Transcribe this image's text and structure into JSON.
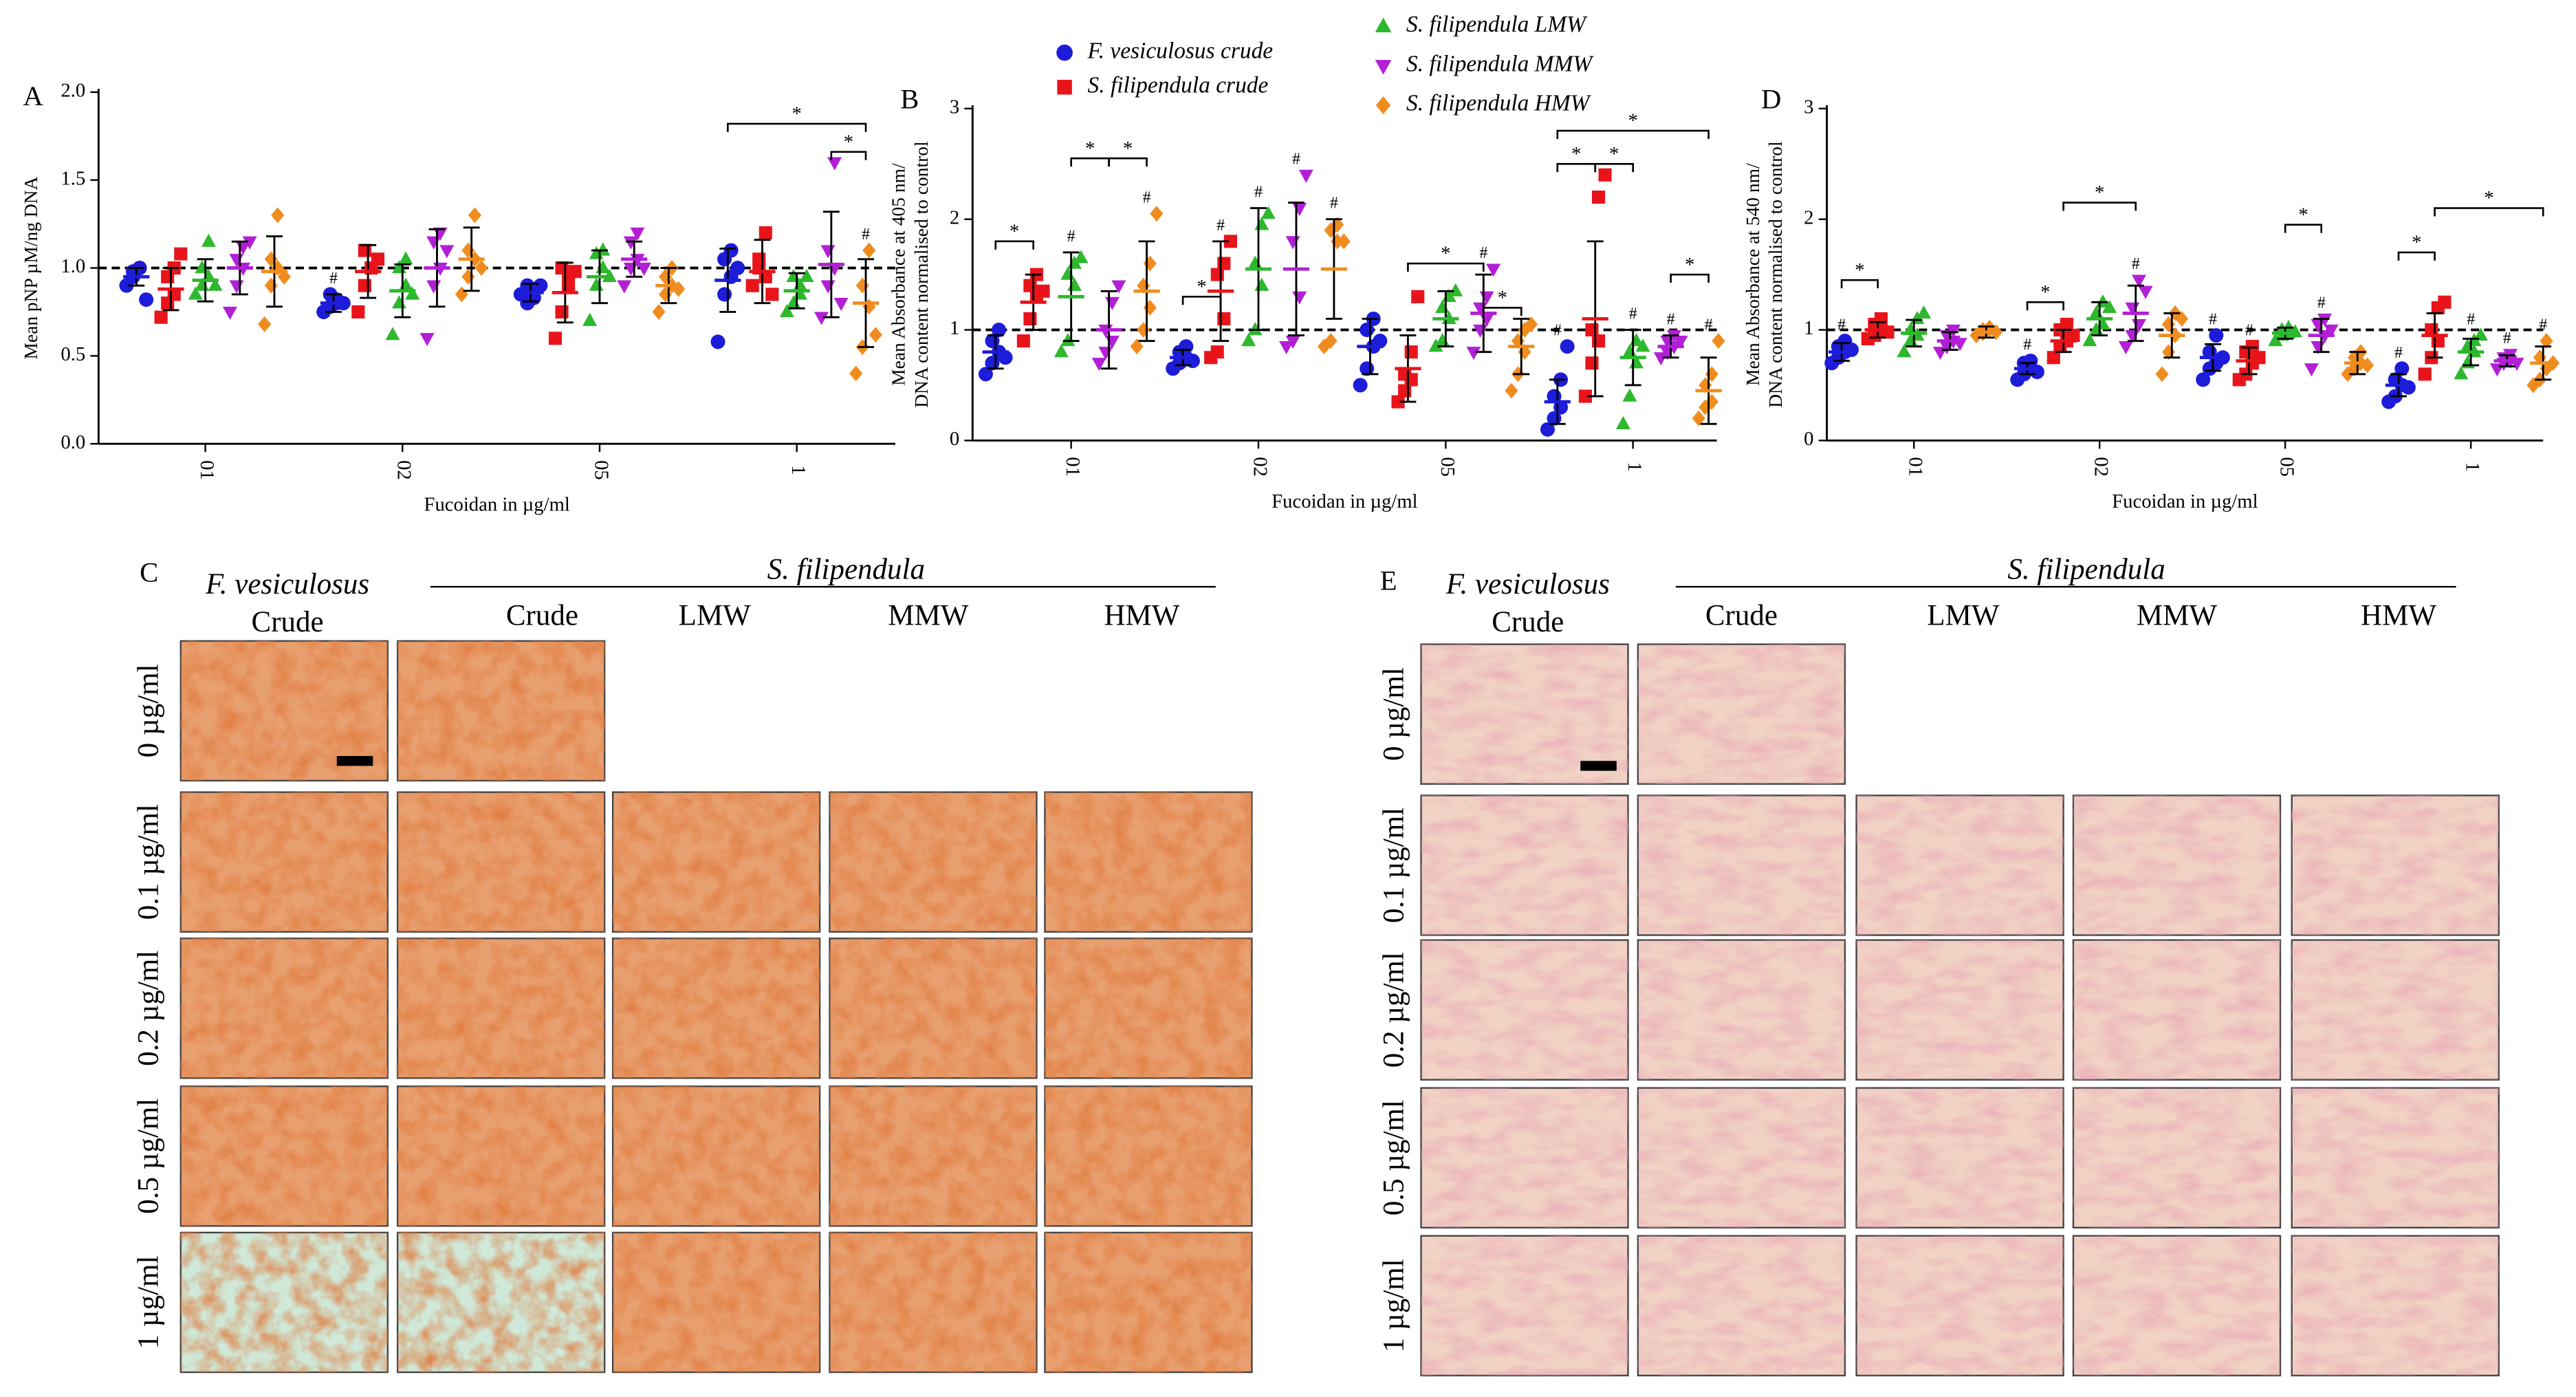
{
  "chart_data": [
    {
      "type": "dot",
      "panel": "A",
      "ylabel": [
        "Mean pNP µM/ng DNA"
      ],
      "xlabel": "Fucoidan in µg/ml",
      "categories": [
        "01",
        "02",
        "05",
        "1"
      ],
      "ylim": [
        0,
        2
      ],
      "yticks": [
        {
          "value": 0,
          "label": "0.0"
        },
        {
          "value": 0.5,
          "label": "0.5"
        },
        {
          "value": 1,
          "label": "1.0"
        },
        {
          "value": 1.5,
          "label": "1.5"
        },
        {
          "value": 2,
          "label": "2.0"
        }
      ],
      "reference_line": 1,
      "hash_label": "#",
      "bracket_label": "*",
      "series": [
        {
          "color": "#1c1cd9",
          "marker": "circle",
          "means": [
            0.95,
            0.8,
            0.86,
            0.93
          ],
          "sd": [
            0.05,
            0.05,
            0.05,
            0.18
          ],
          "points": [
            [
              0.9,
              0.95,
              1.0,
              0.98,
              1.0,
              0.82
            ],
            [
              0.75,
              0.78,
              0.82,
              0.85,
              0.8,
              0.8
            ],
            [
              0.85,
              0.9,
              0.88,
              0.8,
              0.83,
              0.9
            ],
            [
              0.58,
              0.85,
              0.95,
              1.05,
              1.1,
              1.0
            ]
          ]
        },
        {
          "color": "#e8141a",
          "marker": "square",
          "means": [
            0.88,
            0.98,
            0.86,
            0.98
          ],
          "sd": [
            0.12,
            0.15,
            0.17,
            0.18
          ],
          "points": [
            [
              0.72,
              0.8,
              0.85,
              0.95,
              1.0,
              1.08
            ],
            [
              0.75,
              0.9,
              1.0,
              1.1,
              1.0,
              1.05
            ],
            [
              0.6,
              0.75,
              0.9,
              1.0,
              0.95,
              0.98
            ],
            [
              0.9,
              1.0,
              0.95,
              1.05,
              1.2,
              0.85
            ]
          ]
        },
        {
          "color": "#2db82d",
          "marker": "triangle",
          "means": [
            0.93,
            0.87,
            0.95,
            0.87
          ],
          "sd": [
            0.12,
            0.15,
            0.15,
            0.1
          ],
          "points": [
            [
              0.85,
              0.9,
              0.95,
              1.0,
              1.15,
              0.9
            ],
            [
              0.62,
              0.8,
              0.9,
              1.0,
              1.05,
              0.85
            ],
            [
              0.7,
              0.9,
              1.0,
              1.08,
              1.1,
              0.95
            ],
            [
              0.75,
              0.8,
              0.85,
              0.95,
              0.9,
              0.95
            ]
          ]
        },
        {
          "color": "#b21fd6",
          "marker": "triangle-down",
          "means": [
            1.0,
            1.0,
            1.05,
            1.02
          ],
          "sd": [
            0.15,
            0.22,
            0.1,
            0.3
          ],
          "points": [
            [
              0.75,
              0.9,
              1.0,
              1.05,
              1.12,
              1.15
            ],
            [
              0.6,
              0.9,
              1.0,
              1.15,
              1.2,
              1.1
            ],
            [
              0.9,
              1.0,
              1.05,
              1.15,
              1.2,
              1.0
            ],
            [
              0.72,
              0.9,
              1.0,
              1.1,
              1.6,
              0.8
            ]
          ]
        },
        {
          "color": "#f08c1e",
          "marker": "diamond",
          "means": [
            0.98,
            1.05,
            0.9,
            0.8
          ],
          "sd": [
            0.2,
            0.18,
            0.1,
            0.25
          ],
          "points": [
            [
              0.68,
              0.9,
              1.0,
              1.05,
              1.3,
              0.95
            ],
            [
              0.85,
              0.95,
              1.05,
              1.1,
              1.3,
              1.0
            ],
            [
              0.75,
              0.85,
              0.9,
              0.95,
              1.0,
              0.88
            ],
            [
              0.4,
              0.55,
              0.78,
              0.9,
              1.1,
              0.62
            ]
          ]
        }
      ],
      "hashes": [
        [
          0,
          1
        ],
        [
          4,
          3
        ]
      ],
      "brackets": [
        {
          "category": 3,
          "series": [
            0,
            4
          ],
          "y": 1.82
        },
        {
          "category": 3,
          "series": [
            3,
            4
          ],
          "y": 1.66
        }
      ]
    },
    {
      "type": "dot",
      "panel": "B",
      "ylabel": [
        "Mean Absorbance at 405 nm/",
        "DNA content normalised to control"
      ],
      "xlabel": "Fucoidan in µg/ml",
      "categories": [
        "01",
        "02",
        "05",
        "1"
      ],
      "ylim": [
        0,
        3
      ],
      "yticks": [
        0,
        1,
        2,
        3
      ],
      "reference_line": 1,
      "hash_label": "#",
      "bracket_label": "*",
      "series": [
        {
          "name": "F. vesiculosus crude",
          "color": "#1c1cd9",
          "marker": "circle",
          "means": [
            0.8,
            0.75,
            0.85,
            0.35
          ],
          "sd": [
            0.15,
            0.07,
            0.25,
            0.2
          ],
          "points": [
            [
              0.6,
              0.7,
              0.8,
              0.9,
              1.0,
              0.75
            ],
            [
              0.65,
              0.7,
              0.75,
              0.8,
              0.85,
              0.72
            ],
            [
              0.5,
              0.65,
              0.85,
              1.0,
              1.1,
              0.9
            ],
            [
              0.1,
              0.2,
              0.3,
              0.4,
              0.55,
              0.85
            ]
          ]
        },
        {
          "name": "S. filipendula crude",
          "color": "#e8141a",
          "marker": "square",
          "means": [
            1.25,
            1.35,
            0.65,
            1.1
          ],
          "sd": [
            0.25,
            0.45,
            0.3,
            0.7
          ],
          "points": [
            [
              0.9,
              1.1,
              1.3,
              1.4,
              1.5,
              1.35
            ],
            [
              0.75,
              0.8,
              1.1,
              1.5,
              1.6,
              1.8
            ],
            [
              0.35,
              0.45,
              0.55,
              0.6,
              0.8,
              1.3
            ],
            [
              0.4,
              0.7,
              0.9,
              1.0,
              2.2,
              2.4
            ]
          ]
        },
        {
          "name": "S. filipendula LMW",
          "color": "#2db82d",
          "marker": "triangle",
          "means": [
            1.3,
            1.55,
            1.1,
            0.75
          ],
          "sd": [
            0.4,
            0.55,
            0.25,
            0.25
          ],
          "points": [
            [
              0.8,
              0.9,
              1.4,
              1.5,
              1.6,
              1.65
            ],
            [
              0.9,
              1.0,
              1.4,
              1.6,
              1.95,
              2.05
            ],
            [
              0.85,
              0.9,
              1.1,
              1.2,
              1.3,
              1.35
            ],
            [
              0.15,
              0.4,
              0.7,
              0.8,
              0.9,
              0.85
            ]
          ]
        },
        {
          "name": "S. filipendula MMW",
          "color": "#b21fd6",
          "marker": "triangle-down",
          "means": [
            1.0,
            1.55,
            1.15,
            0.85
          ],
          "sd": [
            0.35,
            0.6,
            0.35,
            0.1
          ],
          "points": [
            [
              0.7,
              0.8,
              0.9,
              1.0,
              1.25,
              1.4
            ],
            [
              0.85,
              0.9,
              1.3,
              1.8,
              2.1,
              2.4
            ],
            [
              0.8,
              1.0,
              1.1,
              1.2,
              1.3,
              1.55
            ],
            [
              0.75,
              0.8,
              0.85,
              0.9,
              0.95,
              0.9
            ]
          ]
        },
        {
          "name": "S. filipendula HMW",
          "color": "#f08c1e",
          "marker": "diamond",
          "means": [
            1.35,
            1.55,
            0.85,
            0.45
          ],
          "sd": [
            0.45,
            0.45,
            0.25,
            0.3
          ],
          "points": [
            [
              0.85,
              1.0,
              1.2,
              1.4,
              1.6,
              2.05
            ],
            [
              0.85,
              0.9,
              1.8,
              1.9,
              1.95,
              1.8
            ],
            [
              0.45,
              0.6,
              0.8,
              0.9,
              1.0,
              1.05
            ],
            [
              0.2,
              0.3,
              0.35,
              0.5,
              0.6,
              0.9
            ]
          ]
        }
      ],
      "hashes": [
        [
          2,
          0
        ],
        [
          4,
          0
        ],
        [
          1,
          1
        ],
        [
          2,
          1
        ],
        [
          3,
          1
        ],
        [
          4,
          1
        ],
        [
          3,
          2
        ],
        [
          0,
          3
        ],
        [
          2,
          3
        ],
        [
          3,
          3
        ],
        [
          4,
          3
        ]
      ],
      "brackets": [
        {
          "category": 0,
          "series": [
            0,
            1
          ],
          "y": 1.8
        },
        {
          "category": 0,
          "series": [
            2,
            3
          ],
          "y": 2.55
        },
        {
          "category": 0,
          "series": [
            3,
            4
          ],
          "y": 2.55
        },
        {
          "category": 1,
          "series": [
            0,
            1
          ],
          "y": 1.3
        },
        {
          "category": 2,
          "series": [
            1,
            3
          ],
          "y": 1.6
        },
        {
          "category": 2,
          "series": [
            3,
            4
          ],
          "y": 1.2
        },
        {
          "category": 3,
          "series": [
            0,
            1
          ],
          "y": 2.5
        },
        {
          "category": 3,
          "series": [
            1,
            2
          ],
          "y": 2.5
        },
        {
          "category": 3,
          "series": [
            0,
            4
          ],
          "y": 2.8
        },
        {
          "category": 3,
          "series": [
            3,
            4
          ],
          "y": 1.5
        }
      ]
    },
    {
      "type": "dot",
      "panel": "D",
      "ylabel": [
        "Mean Absorbance at 540 nm/",
        "DNA content normalised to control"
      ],
      "xlabel": "Fucoidan in µg/ml",
      "categories": [
        "01",
        "02",
        "05",
        "1"
      ],
      "ylim": [
        0,
        3
      ],
      "yticks": [
        0,
        1,
        2,
        3
      ],
      "reference_line": 1,
      "hash_label": "#",
      "bracket_label": "*",
      "series": [
        {
          "color": "#1c1cd9",
          "marker": "circle",
          "means": [
            0.8,
            0.65,
            0.75,
            0.5
          ],
          "sd": [
            0.08,
            0.05,
            0.12,
            0.1
          ],
          "points": [
            [
              0.7,
              0.75,
              0.8,
              0.85,
              0.9,
              0.82
            ],
            [
              0.55,
              0.6,
              0.65,
              0.7,
              0.72,
              0.62
            ],
            [
              0.55,
              0.65,
              0.7,
              0.8,
              0.95,
              0.75
            ],
            [
              0.35,
              0.4,
              0.5,
              0.55,
              0.65,
              0.48
            ]
          ]
        },
        {
          "color": "#e8141a",
          "marker": "square",
          "means": [
            1.0,
            0.9,
            0.72,
            0.95
          ],
          "sd": [
            0.07,
            0.1,
            0.12,
            0.2
          ],
          "points": [
            [
              0.92,
              0.95,
              1.0,
              1.05,
              1.1,
              0.98
            ],
            [
              0.75,
              0.85,
              0.9,
              1.0,
              1.05,
              0.95
            ],
            [
              0.55,
              0.6,
              0.7,
              0.8,
              0.85,
              0.75
            ],
            [
              0.6,
              0.75,
              0.9,
              1.0,
              1.2,
              1.25
            ]
          ]
        },
        {
          "color": "#2db82d",
          "marker": "triangle",
          "means": [
            0.97,
            1.1,
            0.97,
            0.8
          ],
          "sd": [
            0.12,
            0.15,
            0.05,
            0.12
          ],
          "points": [
            [
              0.8,
              0.9,
              0.95,
              1.0,
              1.1,
              1.15
            ],
            [
              0.9,
              1.0,
              1.05,
              1.15,
              1.25,
              1.2
            ],
            [
              0.9,
              0.95,
              0.97,
              1.0,
              1.02,
              0.98
            ],
            [
              0.6,
              0.7,
              0.8,
              0.85,
              0.9,
              0.95
            ]
          ]
        },
        {
          "color": "#b21fd6",
          "marker": "triangle-down",
          "means": [
            0.9,
            1.15,
            0.95,
            0.72
          ],
          "sd": [
            0.08,
            0.25,
            0.15,
            0.05
          ],
          "points": [
            [
              0.8,
              0.85,
              0.9,
              0.95,
              1.0,
              0.88
            ],
            [
              0.85,
              0.95,
              1.05,
              1.2,
              1.45,
              1.35
            ],
            [
              0.65,
              0.85,
              0.95,
              1.05,
              1.1,
              1.0
            ],
            [
              0.65,
              0.7,
              0.72,
              0.75,
              0.78,
              0.7
            ]
          ]
        },
        {
          "color": "#f08c1e",
          "marker": "diamond",
          "means": [
            0.98,
            0.95,
            0.7,
            0.7
          ],
          "sd": [
            0.05,
            0.2,
            0.1,
            0.15
          ],
          "points": [
            [
              0.95,
              0.97,
              1.0,
              1.0,
              1.02,
              0.98
            ],
            [
              0.6,
              0.8,
              0.95,
              1.05,
              1.15,
              1.1
            ],
            [
              0.6,
              0.65,
              0.7,
              0.75,
              0.8,
              0.68
            ],
            [
              0.5,
              0.55,
              0.65,
              0.75,
              0.9,
              0.7
            ]
          ]
        }
      ],
      "hashes": [
        [
          0,
          0
        ],
        [
          0,
          1
        ],
        [
          3,
          1
        ],
        [
          0,
          2
        ],
        [
          1,
          2
        ],
        [
          3,
          2
        ],
        [
          0,
          3
        ],
        [
          2,
          3
        ],
        [
          3,
          3
        ],
        [
          4,
          3
        ]
      ],
      "brackets": [
        {
          "category": 0,
          "series": [
            0,
            1
          ],
          "y": 1.45
        },
        {
          "category": 1,
          "series": [
            0,
            1
          ],
          "y": 1.25
        },
        {
          "category": 1,
          "series": [
            1,
            3
          ],
          "y": 2.15
        },
        {
          "category": 2,
          "series": [
            2,
            3
          ],
          "y": 1.95
        },
        {
          "category": 3,
          "series": [
            0,
            1
          ],
          "y": 1.7
        },
        {
          "category": 3,
          "series": [
            1,
            4
          ],
          "y": 2.1
        }
      ]
    }
  ],
  "image_panels": [
    {
      "label": "C",
      "group1": "F.  vesiculosus",
      "group1_sub": "Crude",
      "group2": "S. filipendula",
      "columns": [
        "Crude",
        "LMW",
        "MMW",
        "HMW"
      ],
      "rows": [
        "0 µg/ml",
        "0.1 µg/ml",
        "0.2 µg/ml",
        "0.5 µg/ml",
        "1 µg/ml"
      ]
    },
    {
      "label": "E",
      "group1": "F.  vesiculosus",
      "group1_sub": "Crude",
      "group2": "S. filipendula",
      "columns": [
        "Crude",
        "LMW",
        "MMW",
        "HMW"
      ],
      "rows": [
        "0 µg/ml",
        "0.1 µg/ml",
        "0.2 µg/ml",
        "0.5 µg/ml",
        "1 µg/ml"
      ]
    }
  ]
}
